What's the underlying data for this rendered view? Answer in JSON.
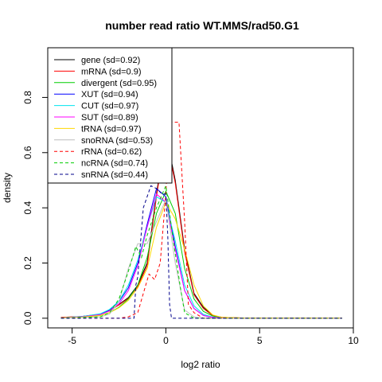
{
  "chart_data": {
    "type": "line",
    "title": "number read ratio WT.MMS/rad50.G1",
    "xlabel": "log2 ratio",
    "ylabel": "density",
    "xlim": [
      -6.3,
      10.0
    ],
    "ylim": [
      -0.035,
      0.98
    ],
    "x_ticks": [
      -5,
      0,
      5,
      10
    ],
    "y_ticks": [
      0.0,
      0.2,
      0.4,
      0.6,
      0.8
    ],
    "x_tick_labels": [
      "-5",
      "0",
      "5",
      "10"
    ],
    "y_tick_labels": [
      "0.0",
      "0.2",
      "0.4",
      "0.6",
      "0.8"
    ],
    "grid": false,
    "legend_position": "top-left",
    "series": [
      {
        "name": "gene (sd=0.92)",
        "color": "#000000",
        "dash": "solid",
        "x": [
          -5.6,
          -4.5,
          -3.5,
          -3.0,
          -2.5,
          -2.0,
          -1.5,
          -1.0,
          -0.5,
          0.0,
          0.5,
          1.0,
          1.5,
          2.0,
          2.5,
          3.0,
          4.0,
          5.0,
          6.0,
          7.0,
          8.0,
          9.4
        ],
        "y": [
          0.003,
          0.006,
          0.015,
          0.028,
          0.05,
          0.075,
          0.12,
          0.2,
          0.45,
          0.67,
          0.5,
          0.25,
          0.09,
          0.04,
          0.01,
          0.003,
          0.001,
          0.001,
          0.001,
          0.001,
          0.001,
          0.001
        ]
      },
      {
        "name": "mRNA (sd=0.9)",
        "color": "#ff0000",
        "dash": "solid",
        "x": [
          -5.6,
          -4.5,
          -3.5,
          -3.0,
          -2.5,
          -2.0,
          -1.5,
          -1.0,
          -0.5,
          0.0,
          0.5,
          1.0,
          1.5,
          2.0,
          2.5,
          3.0,
          4.0,
          5.0,
          6.0,
          7.0,
          8.0,
          9.4
        ],
        "y": [
          0.003,
          0.006,
          0.015,
          0.028,
          0.048,
          0.072,
          0.115,
          0.19,
          0.44,
          0.66,
          0.49,
          0.24,
          0.085,
          0.035,
          0.01,
          0.003,
          0.001,
          0.001,
          0.001,
          0.001,
          0.001,
          0.001
        ]
      },
      {
        "name": "divergent (sd=0.95)",
        "color": "#00cd00",
        "dash": "solid",
        "x": [
          -5.6,
          -4.5,
          -3.5,
          -3.0,
          -2.5,
          -2.0,
          -1.5,
          -1.0,
          -0.5,
          0.0,
          0.5,
          1.0,
          1.5,
          2.0,
          2.5,
          3.0,
          4.0,
          5.0,
          6.0,
          7.0,
          8.0,
          9.4
        ],
        "y": [
          0.002,
          0.004,
          0.01,
          0.02,
          0.04,
          0.07,
          0.12,
          0.22,
          0.38,
          0.46,
          0.38,
          0.18,
          0.07,
          0.025,
          0.008,
          0.002,
          0.001,
          0.001,
          0.001,
          0.001,
          0.001,
          0.001
        ]
      },
      {
        "name": "XUT (sd=0.94)",
        "color": "#0000ff",
        "dash": "solid",
        "x": [
          -5.6,
          -4.5,
          -3.5,
          -3.0,
          -2.5,
          -2.0,
          -1.5,
          -1.0,
          -0.5,
          0.0,
          0.5,
          1.0,
          1.5,
          2.0,
          2.5,
          3.0,
          4.0,
          5.0,
          6.0,
          7.0,
          8.0,
          9.4
        ],
        "y": [
          0.002,
          0.006,
          0.015,
          0.03,
          0.06,
          0.11,
          0.2,
          0.34,
          0.47,
          0.44,
          0.26,
          0.1,
          0.035,
          0.01,
          0.003,
          0.001,
          0.001,
          0.001,
          0.001,
          0.001,
          0.001,
          0.001
        ]
      },
      {
        "name": "CUT (sd=0.97)",
        "color": "#00e5ee",
        "dash": "solid",
        "x": [
          -5.6,
          -4.5,
          -3.5,
          -3.0,
          -2.5,
          -2.0,
          -1.5,
          -1.0,
          -0.5,
          0.0,
          0.5,
          1.0,
          1.5,
          2.0,
          2.5,
          3.0,
          4.0,
          5.0,
          6.0,
          7.0,
          8.0,
          9.4
        ],
        "y": [
          0.002,
          0.006,
          0.016,
          0.032,
          0.062,
          0.12,
          0.21,
          0.33,
          0.44,
          0.42,
          0.28,
          0.12,
          0.045,
          0.014,
          0.004,
          0.001,
          0.001,
          0.001,
          0.001,
          0.001,
          0.001,
          0.001
        ]
      },
      {
        "name": "SUT (sd=0.89)",
        "color": "#ff00ff",
        "dash": "solid",
        "x": [
          -5.6,
          -4.5,
          -3.5,
          -3.0,
          -2.5,
          -2.0,
          -1.5,
          -1.0,
          -0.5,
          0.0,
          0.5,
          1.0,
          1.5,
          2.0,
          2.5,
          3.0,
          4.0,
          5.0,
          6.0,
          7.0,
          8.0,
          9.4
        ],
        "y": [
          0.002,
          0.005,
          0.013,
          0.026,
          0.052,
          0.1,
          0.19,
          0.33,
          0.45,
          0.42,
          0.25,
          0.1,
          0.035,
          0.01,
          0.003,
          0.001,
          0.001,
          0.001,
          0.001,
          0.001,
          0.001,
          0.001
        ]
      },
      {
        "name": "tRNA (sd=0.97)",
        "color": "#ffd700",
        "dash": "solid",
        "x": [
          -5.6,
          -4.5,
          -3.5,
          -3.0,
          -2.5,
          -2.0,
          -1.5,
          -1.0,
          -0.5,
          0.0,
          0.5,
          1.0,
          1.5,
          2.0,
          2.5,
          3.0,
          4.0,
          5.0,
          6.0,
          7.0,
          8.0,
          9.4
        ],
        "y": [
          0.002,
          0.004,
          0.01,
          0.02,
          0.038,
          0.065,
          0.11,
          0.18,
          0.33,
          0.42,
          0.36,
          0.25,
          0.12,
          0.045,
          0.012,
          0.003,
          0.001,
          0.001,
          0.001,
          0.001,
          0.001,
          0.001
        ]
      },
      {
        "name": "snoRNA (sd=0.53)",
        "color": "#bebebe",
        "dash": "solid",
        "x": [
          -5.6,
          -3.5,
          -3.0,
          -2.5,
          -2.0,
          -1.5,
          -1.0,
          -0.5,
          0.0,
          0.5,
          1.0,
          1.5,
          2.0,
          3.0,
          5.0,
          9.4
        ],
        "y": [
          0.0,
          0.005,
          0.015,
          0.06,
          0.18,
          0.27,
          0.27,
          0.35,
          0.43,
          0.2,
          0.03,
          0.005,
          0.0,
          0.0,
          0.0,
          0.0
        ]
      },
      {
        "name": "rRNA (sd=0.62)",
        "color": "#ff0000",
        "dash": "dashed",
        "x": [
          -5.6,
          -2.5,
          -2.0,
          -1.5,
          -1.2,
          -0.9,
          -0.6,
          -0.3,
          0.0,
          0.2,
          0.4,
          0.7,
          1.0,
          1.2,
          1.5,
          2.0,
          3.0,
          5.0,
          9.4
        ],
        "y": [
          0.0,
          0.0,
          0.005,
          0.02,
          0.09,
          0.16,
          0.14,
          0.2,
          0.45,
          0.71,
          0.71,
          0.71,
          0.35,
          0.05,
          0.02,
          0.0,
          0.0,
          0.0,
          0.0
        ]
      },
      {
        "name": "ncRNA (sd=0.74)",
        "color": "#00cd00",
        "dash": "dashed",
        "x": [
          -5.6,
          -3.5,
          -3.0,
          -2.5,
          -2.0,
          -1.6,
          -1.3,
          -1.0,
          -0.5,
          0.0,
          0.4,
          0.8,
          1.0,
          1.5,
          3.0,
          5.0,
          9.4
        ],
        "y": [
          0.0,
          0.005,
          0.02,
          0.07,
          0.17,
          0.26,
          0.22,
          0.3,
          0.4,
          0.48,
          0.28,
          0.1,
          0.02,
          0.0,
          0.0,
          0.0,
          0.0
        ]
      },
      {
        "name": "snRNA (sd=0.44)",
        "color": "#00008b",
        "dash": "dashed",
        "x": [
          -5.6,
          -2.5,
          -1.7,
          -1.6,
          -1.5,
          -1.2,
          -0.8,
          -0.5,
          -0.2,
          0.0,
          0.1,
          0.2,
          0.3,
          0.5,
          1.0,
          3.0,
          5.0,
          9.4
        ],
        "y": [
          0.0,
          0.0,
          0.0,
          0.12,
          0.15,
          0.4,
          0.48,
          0.47,
          0.45,
          0.45,
          0.3,
          0.05,
          0.0,
          0.0,
          0.0,
          0.0,
          0.0,
          0.0
        ]
      }
    ]
  }
}
